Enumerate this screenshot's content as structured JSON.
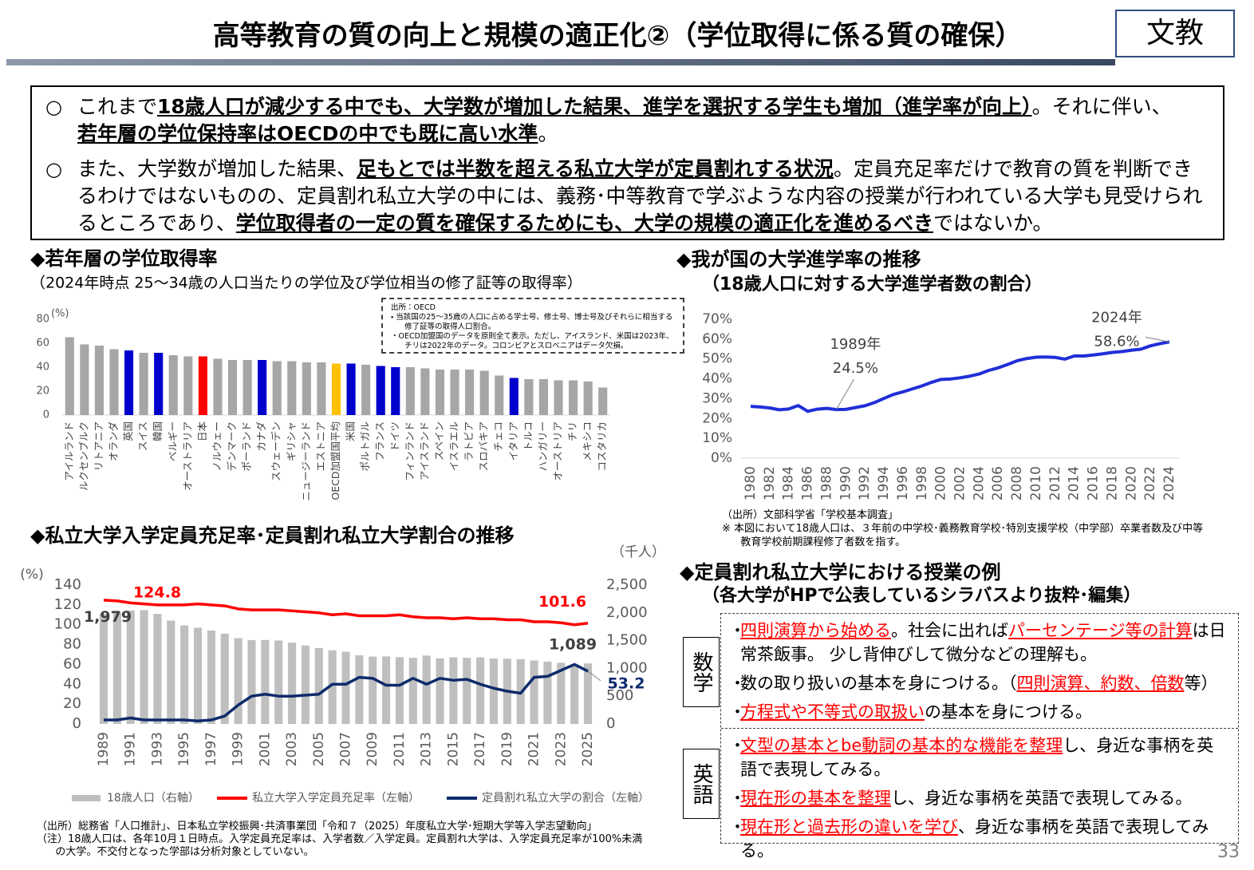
{
  "header": {
    "title": "高等教育の質の向上と規模の適正化②（学位取得に係る質の確保）",
    "badge": "文教",
    "page_number": 33
  },
  "bullets": {
    "marker": "○",
    "items": [
      {
        "segments": [
          {
            "text": "これまで"
          },
          {
            "text": "18歳人口が減少する中でも、大学数が増加した結果、進学を選択する学生も増加（進学率が向上）",
            "bold": true
          },
          {
            "text": "。それに伴い、"
          },
          {
            "text": "若年層の学位保持率はOECDの中でも既に高い水準",
            "bold": true
          },
          {
            "text": "。"
          }
        ]
      },
      {
        "segments": [
          {
            "text": "また、大学数が増加した結果、"
          },
          {
            "text": "足もとでは半数を超える私立大学が定員割れする状況",
            "bold": true
          },
          {
            "text": "。定員充足率だけで教育の質を判断できるわけではないものの、定員割れ私立大学の中には、義務･中等教育で学ぶような内容の授業が行われている大学も見受けられるところであり、"
          },
          {
            "text": "学位取得者の一定の質を確保するためにも、大学の規模の適正化を進めるべき",
            "bold": true
          },
          {
            "text": "ではないか。"
          }
        ]
      }
    ]
  },
  "chart_data": [
    {
      "type": "bar",
      "title": "◆若年層の学位取得率",
      "subtitle": "（2024年時点 25～34歳の人口当たりの学位及び学位相当の修了証等の取得率）",
      "ylabel": "(%)",
      "categories": [
        "アイルランド",
        "ルクセンブルク",
        "リトアニア",
        "オランダ",
        "英国",
        "スイス",
        "韓国",
        "ベルギー",
        "オーストラリア",
        "日本",
        "ノルウェー",
        "デンマーク",
        "ポーランド",
        "カナダ",
        "スウェーデン",
        "ギリシャ",
        "ニュージーランド",
        "エストニア",
        "OECD加盟国平均",
        "米国",
        "ポルトガル",
        "フランス",
        "ドイツ",
        "フィンランド",
        "アイスランド",
        "スペイン",
        "イスラエル",
        "ラトビア",
        "スロバキア",
        "チェコ",
        "イタリア",
        "トルコ",
        "ハンガリー",
        "オーストリア",
        "チリ",
        "メキシコ",
        "コスタリカ"
      ],
      "values": [
        65,
        59,
        58,
        55,
        54,
        52,
        52,
        50,
        49,
        49,
        47,
        46,
        46,
        46,
        45,
        45,
        44,
        44,
        43,
        43,
        42,
        41,
        40,
        40,
        39,
        38,
        38,
        38,
        37,
        33,
        31,
        30,
        30,
        29,
        29,
        28,
        23
      ],
      "colors": [
        "#a6a6a6",
        "#a6a6a6",
        "#a6a6a6",
        "#a6a6a6",
        "#0000cc",
        "#a6a6a6",
        "#0000cc",
        "#a6a6a6",
        "#a6a6a6",
        "#ff0000",
        "#a6a6a6",
        "#a6a6a6",
        "#a6a6a6",
        "#0000cc",
        "#a6a6a6",
        "#a6a6a6",
        "#a6a6a6",
        "#a6a6a6",
        "#ffc000",
        "#0000cc",
        "#a6a6a6",
        "#0000cc",
        "#0000cc",
        "#a6a6a6",
        "#a6a6a6",
        "#a6a6a6",
        "#a6a6a6",
        "#a6a6a6",
        "#a6a6a6",
        "#a6a6a6",
        "#0000cc",
        "#a6a6a6",
        "#a6a6a6",
        "#a6a6a6",
        "#a6a6a6",
        "#a6a6a6",
        "#a6a6a6"
      ],
      "ylim": [
        0,
        80
      ],
      "yticks": [
        0,
        20,
        40,
        60,
        80
      ],
      "grid": false,
      "notes": [
        "出所：OECD",
        "・ 当該国の25～35歳の人口に占める学士号、修士号、博士号及びそれらに相当する修了証等の取得人口割合。",
        "・OECD加盟国のデータを原則全て表示。ただし、アイスランド、米国は2023年、チリは2022年のデータ。コロンビアとスロベニアはデータ欠損。"
      ]
    },
    {
      "type": "line",
      "title": "◆我が国の大学進学率の推移",
      "subtitle": "（18歳人口に対する大学進学者数の割合）",
      "x": [
        1980,
        1981,
        1982,
        1983,
        1984,
        1985,
        1986,
        1987,
        1988,
        1989,
        1990,
        1991,
        1992,
        1993,
        1994,
        1995,
        1996,
        1997,
        1998,
        1999,
        2000,
        2001,
        2002,
        2003,
        2004,
        2005,
        2006,
        2007,
        2008,
        2009,
        2010,
        2011,
        2012,
        2013,
        2014,
        2015,
        2016,
        2017,
        2018,
        2019,
        2020,
        2021,
        2022,
        2023,
        2024
      ],
      "series": [
        {
          "color": "#1f2fd8",
          "values": [
            26.1,
            25.8,
            25.3,
            24.4,
            24.8,
            26.5,
            23.6,
            24.7,
            25.1,
            24.5,
            24.6,
            25.5,
            26.4,
            28.0,
            30.1,
            32.1,
            33.4,
            34.9,
            36.4,
            38.2,
            39.7,
            39.9,
            40.5,
            41.3,
            42.4,
            44.2,
            45.5,
            47.2,
            49.1,
            50.2,
            50.9,
            51.0,
            50.8,
            49.9,
            51.5,
            51.5,
            52.0,
            52.6,
            53.3,
            53.7,
            54.4,
            54.9,
            56.6,
            57.7,
            58.6
          ],
          "value_labels": [
            null,
            null,
            null,
            null,
            null,
            null,
            null,
            null,
            null,
            "24.5%",
            null,
            null,
            null,
            null,
            null,
            null,
            null,
            null,
            null,
            null,
            null,
            null,
            null,
            null,
            null,
            null,
            null,
            null,
            null,
            null,
            null,
            null,
            null,
            null,
            null,
            null,
            null,
            null,
            null,
            null,
            null,
            null,
            null,
            null,
            "58.6%"
          ]
        }
      ],
      "annotations": [
        {
          "x": 1989,
          "label": "1989年"
        },
        {
          "x": 2024,
          "label": "2024年"
        }
      ],
      "xlim": [
        1980,
        2024
      ],
      "xticks": [
        1980,
        1982,
        1984,
        1986,
        1988,
        1990,
        1992,
        1994,
        1996,
        1998,
        2000,
        2002,
        2004,
        2006,
        2008,
        2010,
        2012,
        2014,
        2016,
        2018,
        2020,
        2022,
        2024
      ],
      "ylim": [
        0,
        70
      ],
      "yticks": [
        {
          "value": 0,
          "label": "0%"
        },
        {
          "value": 10,
          "label": "10%"
        },
        {
          "value": 20,
          "label": "20%"
        },
        {
          "value": 30,
          "label": "30%"
        },
        {
          "value": 40,
          "label": "40%"
        },
        {
          "value": 50,
          "label": "50%"
        },
        {
          "value": 60,
          "label": "60%"
        },
        {
          "value": 70,
          "label": "70%"
        }
      ],
      "grid": false,
      "source": "（出所）文部科学省「学校基本調査」",
      "note": "※ 本図において18歳人口は、３年前の中学校･義務教育学校･特別支援学校（中学部）卒業者数及び中等教育学校前期課程修了者数を指す。"
    },
    {
      "type": "combo",
      "title": "◆私立大学入学定員充足率･定員割れ私立大学割合の推移",
      "ylabel": "(%)",
      "y2label": "（千人）",
      "x": [
        1989,
        1990,
        1991,
        1992,
        1993,
        1994,
        1995,
        1996,
        1997,
        1998,
        1999,
        2000,
        2001,
        2002,
        2003,
        2004,
        2005,
        2006,
        2007,
        2008,
        2009,
        2010,
        2011,
        2012,
        2013,
        2014,
        2015,
        2016,
        2017,
        2018,
        2019,
        2020,
        2021,
        2022,
        2023,
        2024,
        2025
      ],
      "series": [
        {
          "name": "18歳人口（右軸）",
          "type": "bar",
          "axis": "y2",
          "color": "#bfbfbf",
          "values": [
            1979,
            2005,
            2044,
            2049,
            1981,
            1861,
            1773,
            1732,
            1681,
            1623,
            1545,
            1510,
            1512,
            1502,
            1462,
            1412,
            1366,
            1326,
            1300,
            1237,
            1212,
            1216,
            1202,
            1191,
            1231,
            1180,
            1199,
            1190,
            1198,
            1178,
            1175,
            1167,
            1141,
            1122,
            1101,
            1064,
            1089
          ],
          "value_labels": [
            "1,979",
            null,
            null,
            null,
            null,
            null,
            null,
            null,
            null,
            null,
            null,
            null,
            null,
            null,
            null,
            null,
            null,
            null,
            null,
            null,
            null,
            null,
            null,
            null,
            null,
            null,
            null,
            null,
            null,
            null,
            null,
            null,
            null,
            null,
            null,
            null,
            "1,089"
          ]
        },
        {
          "name": "私立大学入学定員充足率（左軸）",
          "type": "line",
          "color": "#ff0000",
          "values": [
            124.8,
            124,
            122,
            121,
            120,
            120,
            120,
            121,
            120,
            119,
            116,
            115,
            115,
            115,
            114,
            113,
            112,
            110,
            111,
            109,
            109,
            109,
            110,
            108,
            107,
            107,
            106,
            107,
            106,
            106,
            105,
            105,
            103,
            103,
            102,
            100,
            101.6
          ],
          "value_labels": [
            "124.8",
            null,
            null,
            null,
            null,
            null,
            null,
            null,
            null,
            null,
            null,
            null,
            null,
            null,
            null,
            null,
            null,
            null,
            null,
            null,
            null,
            null,
            null,
            null,
            null,
            null,
            null,
            null,
            null,
            null,
            null,
            null,
            null,
            null,
            null,
            null,
            "101.6"
          ]
        },
        {
          "name": "定員割れ私立大学の割合（左軸）",
          "type": "line",
          "color": "#0d2b6b",
          "values": [
            4,
            4,
            6,
            4,
            4,
            4,
            4,
            3,
            4,
            8,
            19,
            28,
            30,
            28,
            28,
            29,
            30,
            40,
            40,
            47,
            46,
            39,
            39,
            46,
            40,
            46,
            44,
            45,
            40,
            36,
            33,
            31,
            47,
            48,
            54,
            60,
            53.2
          ],
          "value_labels": [
            null,
            null,
            null,
            null,
            null,
            null,
            null,
            null,
            null,
            null,
            null,
            null,
            null,
            null,
            null,
            null,
            null,
            null,
            null,
            null,
            null,
            null,
            null,
            null,
            null,
            null,
            null,
            null,
            null,
            null,
            null,
            null,
            null,
            null,
            null,
            null,
            "53.2"
          ]
        }
      ],
      "xlim": [
        1989,
        2025
      ],
      "xticks": [
        1989,
        1991,
        1993,
        1995,
        1997,
        1999,
        2001,
        2003,
        2005,
        2007,
        2009,
        2011,
        2013,
        2015,
        2017,
        2019,
        2021,
        2023,
        2025
      ],
      "ylim": [
        0,
        140
      ],
      "yticks": [
        0,
        20,
        40,
        60,
        80,
        100,
        120,
        140
      ],
      "y2lim": [
        0,
        2500
      ],
      "y2ticks": [
        0,
        500,
        {
          "value": 1000,
          "label": "1,000"
        },
        {
          "value": 1500,
          "label": "1,500"
        },
        {
          "value": 2000,
          "label": "2,000"
        },
        {
          "value": 2500,
          "label": "2,500"
        }
      ],
      "grid": false,
      "source": "（出所）総務省「人口推計」、日本私立学校振興･共済事業団「令和７（2025）年度私立大学･短期大学等入学志望動向」",
      "note": "（注）18歳人口は、各年10月１日時点。入学定員充足率は、入学者数／入学定員。定員割れ大学は、入学定員充足率が100%未満の大学。不交付となった学部は分析対象としていない。"
    }
  ],
  "examples": {
    "title": "◆定員割れ私立大学における授業の例",
    "subtitle": "（各大学がHPで公表しているシラバスより抜粋･編集）",
    "marker": "・",
    "groups": [
      {
        "label": "数学",
        "items": [
          {
            "segments": [
              {
                "text": "四則演算から始める",
                "highlight": true
              },
              {
                "text": "。社会に出れば"
              },
              {
                "text": "パーセンテージ等の計算",
                "highlight": true
              },
              {
                "text": "は日常茶飯事。 少し背伸びして微分などの理解も。"
              }
            ]
          },
          {
            "segments": [
              {
                "text": "数の取り扱いの基本を身につける。（"
              },
              {
                "text": "四則演算、約数、倍数",
                "highlight": true
              },
              {
                "text": "等）"
              }
            ]
          },
          {
            "segments": [
              {
                "text": "方程式や不等式の取扱い",
                "highlight": true
              },
              {
                "text": "の基本を身につける。"
              }
            ]
          }
        ]
      },
      {
        "label": "英語",
        "items": [
          {
            "segments": [
              {
                "text": "文型の基本とbe動詞の基本的な機能を整理",
                "highlight": true
              },
              {
                "text": "し、身近な事柄を英語で表現してみる。"
              }
            ]
          },
          {
            "segments": [
              {
                "text": "現在形の基本を整理",
                "highlight": true
              },
              {
                "text": "し、身近な事柄を英語で表現してみる。"
              }
            ]
          },
          {
            "segments": [
              {
                "text": "現在形と過去形の違いを学び",
                "highlight": true
              },
              {
                "text": "、身近な事柄を英語で表現してみる。"
              }
            ]
          }
        ]
      }
    ]
  }
}
